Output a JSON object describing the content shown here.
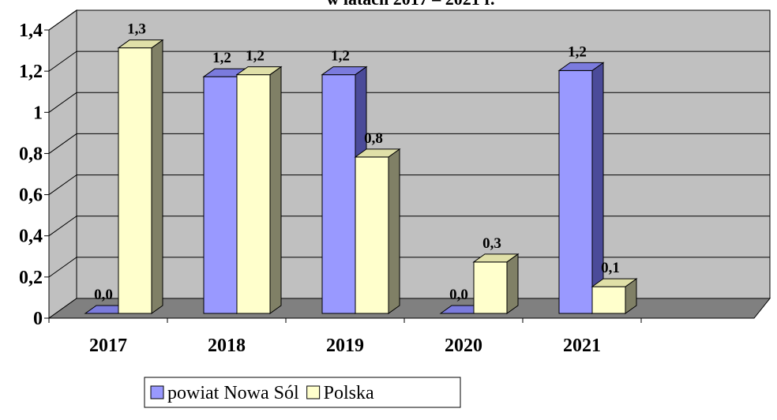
{
  "chart_data": {
    "type": "bar3d",
    "title": "w latach 2017 – 2021 r.",
    "categories": [
      "2017",
      "2018",
      "2019",
      "2020",
      "2021"
    ],
    "series": [
      {
        "name": "powiat Nowa Sól",
        "color": "#9999ff",
        "values": [
          0.0,
          1.15,
          1.16,
          0.0,
          1.18
        ],
        "value_labels": [
          "0,0",
          "1,2",
          "1,2",
          "0,0",
          "1,2"
        ]
      },
      {
        "name": "Polska",
        "color": "#ffffcc",
        "values": [
          1.29,
          1.16,
          0.76,
          0.25,
          0.13
        ],
        "value_labels": [
          "1,3",
          "1,2",
          "0,8",
          "0,3",
          "0,1"
        ]
      }
    ],
    "ylim": [
      0,
      1.4
    ],
    "yticks": [
      0,
      {
        "value": 0.2,
        "label": "0,2"
      },
      {
        "value": 0.4,
        "label": "0,4"
      },
      {
        "value": 0.6,
        "label": "0,6"
      },
      {
        "value": 0.8,
        "label": "0,8"
      },
      1,
      {
        "value": 1.2,
        "label": "1,2"
      },
      {
        "value": 1.4,
        "label": "1,4"
      }
    ],
    "grid": true
  }
}
